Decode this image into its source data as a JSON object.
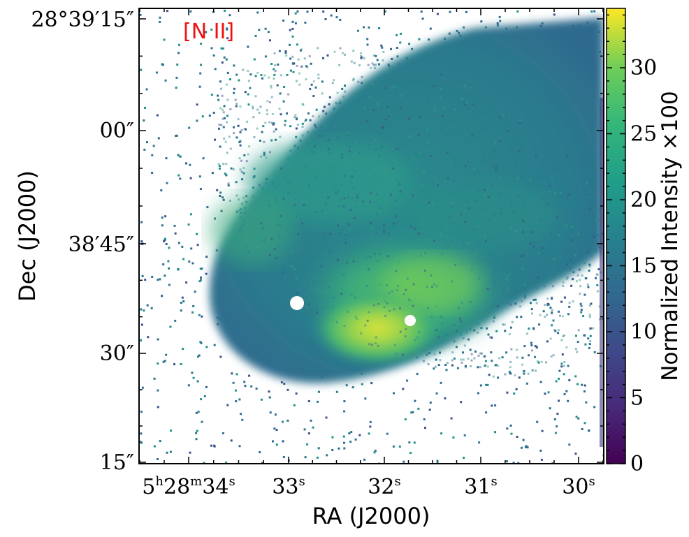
{
  "chart_data": {
    "type": "heatmap",
    "title": "",
    "panel_label": "[N II]",
    "panel_label_color": "#ee1111",
    "xlabel": "RA (J2000)",
    "ylabel": "Dec (J2000)",
    "x_ticks": [
      {
        "main": "5",
        "sup1": "h",
        "mid": "28",
        "sup2": "m",
        "tail": "34",
        "sup3": "s"
      },
      {
        "main": "33",
        "sup": "s"
      },
      {
        "main": "32",
        "sup": "s"
      },
      {
        "main": "31",
        "sup": "s"
      },
      {
        "main": "30",
        "sup": "s"
      }
    ],
    "y_ticks": [
      "28°39′15″",
      "00″",
      "38′45″",
      "30″",
      "15″"
    ],
    "colorbar": {
      "label": "Normalized Intensity ×100",
      "min": 0,
      "max": 34.5,
      "ticks": [
        "0",
        "5",
        "10",
        "15",
        "20",
        "25",
        "30"
      ],
      "colormap": "viridis"
    },
    "description_values": {
      "ra_range_s": [
        34.4,
        29.8
      ],
      "dec_range_arcsec": [
        14,
        76
      ],
      "peak_intensity": 34,
      "peak_location": {
        "ra_s": 32.1,
        "dec_arcsec": 31.5
      },
      "masked_stars": [
        {
          "ra_s": 32.9,
          "dec_arcsec": 36
        },
        {
          "ra_s": 31.7,
          "dec_arcsec": 33
        }
      ]
    }
  }
}
